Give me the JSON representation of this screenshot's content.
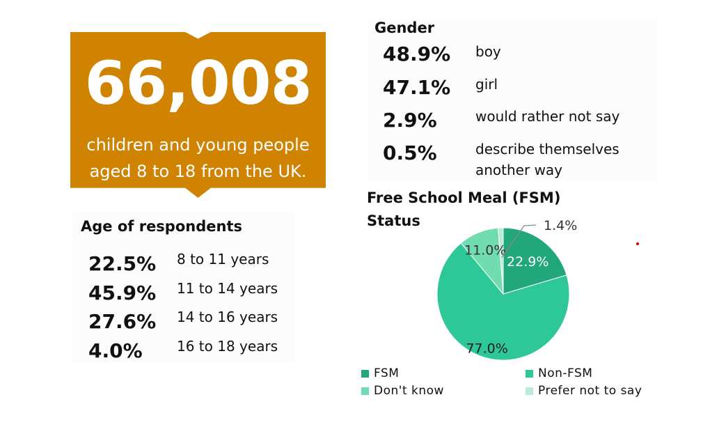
{
  "headline": {
    "number": "66,008",
    "caption_line1": "children and young people",
    "caption_line2": "aged 8 to 18 from the UK."
  },
  "gender": {
    "title": "Gender",
    "rows": [
      {
        "pct": "48.9%",
        "label": "boy"
      },
      {
        "pct": "47.1%",
        "label": "girl"
      },
      {
        "pct": "2.9%",
        "label": "would rather not say"
      },
      {
        "pct": "0.5%",
        "label": "describe themselves",
        "label2": "another way"
      }
    ]
  },
  "age": {
    "title": "Age of respondents",
    "rows": [
      {
        "pct": "22.5%",
        "label": "8 to 11 years"
      },
      {
        "pct": "45.9%",
        "label": "11 to 14 years"
      },
      {
        "pct": "27.6%",
        "label": "14 to 16 years"
      },
      {
        "pct": "4.0%",
        "label": "16 to 18 years"
      }
    ]
  },
  "chart_data": {
    "type": "pie",
    "title": "Free School Meal (FSM) Status",
    "title_line1": "Free School Meal (FSM)",
    "title_line2": "Status",
    "categories": [
      "FSM",
      "Non-FSM",
      "Don't know",
      "Prefer not to say"
    ],
    "values": [
      22.9,
      77.0,
      11.0,
      1.4
    ],
    "data_labels": [
      "22.9%",
      "77.0%",
      "11.0%",
      "1.4%"
    ],
    "colors": [
      "#22a77b",
      "#2ec898",
      "#72dcb1",
      "#b9ecd6"
    ],
    "legend_position": "bottom"
  },
  "colors": {
    "banner": "#d08300"
  }
}
